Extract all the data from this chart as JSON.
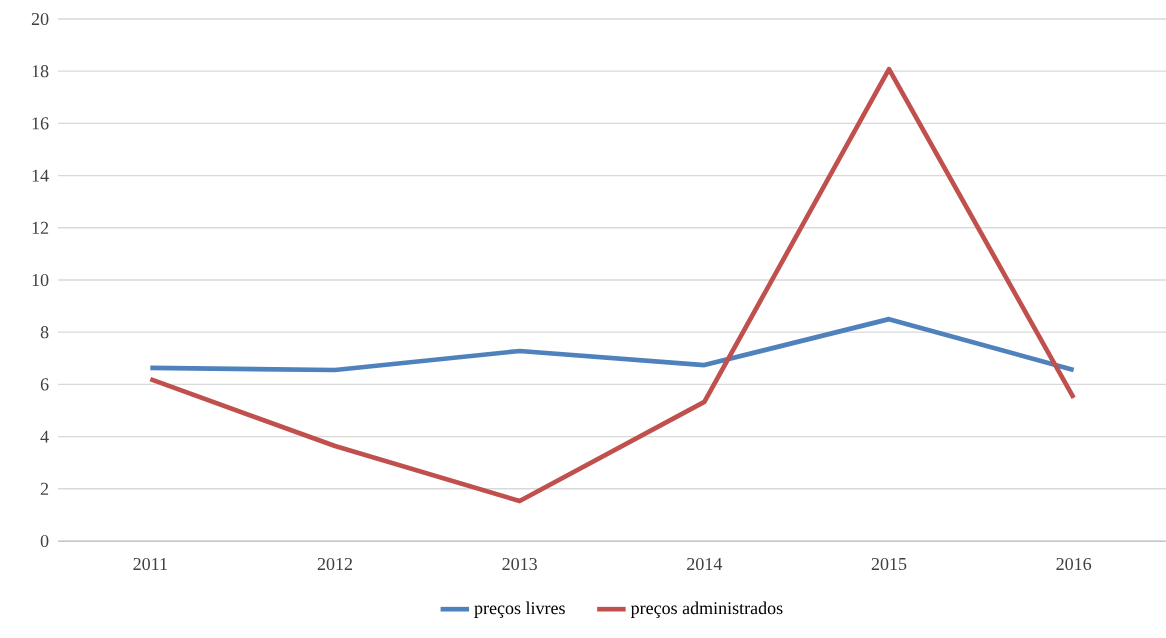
{
  "chart_data": {
    "type": "line",
    "categories": [
      "2011",
      "2012",
      "2013",
      "2014",
      "2015",
      "2016"
    ],
    "series": [
      {
        "name": "preços livres",
        "color": "#4f81bd",
        "values": [
          6.63,
          6.55,
          7.28,
          6.74,
          8.5,
          6.55
        ]
      },
      {
        "name": "preços administrados",
        "color": "#c0504d",
        "values": [
          6.2,
          3.64,
          1.53,
          5.33,
          18.08,
          5.48
        ]
      }
    ],
    "ylim": [
      0,
      20
    ],
    "yticks": [
      0,
      2,
      4,
      6,
      8,
      10,
      12,
      14,
      16,
      18,
      20
    ],
    "grid": "y",
    "legend": "bottom",
    "line_style": "solid"
  }
}
